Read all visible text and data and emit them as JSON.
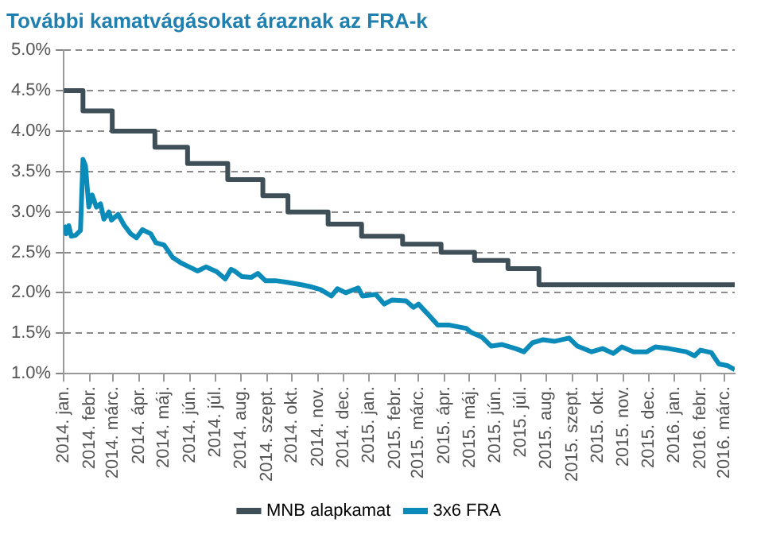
{
  "chart_data": {
    "type": "line",
    "title": "További kamatvágásokat áraznak az FRA-k",
    "xlim": [
      "2014-01-01",
      "2016-03-13"
    ],
    "xticks": [
      {
        "value": "2014-01-01",
        "label": "2014. jan."
      },
      {
        "value": "2014-02-01",
        "label": "2014. febr."
      },
      {
        "value": "2014-03-01",
        "label": "2014. márc."
      },
      {
        "value": "2014-04-01",
        "label": "2014. ápr."
      },
      {
        "value": "2014-05-01",
        "label": "2014. máj."
      },
      {
        "value": "2014-06-01",
        "label": "2014. jún."
      },
      {
        "value": "2014-07-01",
        "label": "2014. júl."
      },
      {
        "value": "2014-08-01",
        "label": "2014. aug."
      },
      {
        "value": "2014-09-01",
        "label": "2014. szept."
      },
      {
        "value": "2014-10-01",
        "label": "2014. okt."
      },
      {
        "value": "2014-11-01",
        "label": "2014. nov."
      },
      {
        "value": "2014-12-01",
        "label": "2014. dec."
      },
      {
        "value": "2015-01-01",
        "label": "2015. jan."
      },
      {
        "value": "2015-02-01",
        "label": "2015. febr."
      },
      {
        "value": "2015-03-01",
        "label": "2015. márc."
      },
      {
        "value": "2015-04-01",
        "label": "2015. ápr."
      },
      {
        "value": "2015-05-01",
        "label": "2015. máj."
      },
      {
        "value": "2015-06-01",
        "label": "2015. jún."
      },
      {
        "value": "2015-07-01",
        "label": "2015. júl."
      },
      {
        "value": "2015-08-01",
        "label": "2015. aug."
      },
      {
        "value": "2015-09-01",
        "label": "2015. szept."
      },
      {
        "value": "2015-10-01",
        "label": "2015. okt."
      },
      {
        "value": "2015-11-01",
        "label": "2015. nov."
      },
      {
        "value": "2015-12-01",
        "label": "2015. dec."
      },
      {
        "value": "2016-01-01",
        "label": "2016. jan."
      },
      {
        "value": "2016-02-01",
        "label": "2016. febr."
      },
      {
        "value": "2016-03-01",
        "label": "2016. márc."
      }
    ],
    "ylim": [
      1.0,
      5.0
    ],
    "yticks": [
      {
        "value": 1.0,
        "label": "1.0%"
      },
      {
        "value": 1.5,
        "label": "1.5%"
      },
      {
        "value": 2.0,
        "label": "2.0%"
      },
      {
        "value": 2.5,
        "label": "2.5%"
      },
      {
        "value": 3.0,
        "label": "3.0%"
      },
      {
        "value": 3.5,
        "label": "3.5%"
      },
      {
        "value": 4.0,
        "label": "4.0%"
      },
      {
        "value": 4.5,
        "label": "4.5%"
      },
      {
        "value": 5.0,
        "label": "5.0%"
      }
    ],
    "grid": "y",
    "legend": "bottom",
    "marker": "none",
    "series": [
      {
        "name": "MNB alapkamat",
        "type": "step",
        "color": "#3e4f58",
        "x": [
          "2014-01-01",
          "2014-01-24",
          "2014-02-28",
          "2014-04-20",
          "2014-05-29",
          "2014-07-16",
          "2014-08-27",
          "2014-09-26",
          "2014-11-13",
          "2014-12-23",
          "2015-02-10",
          "2015-03-28",
          "2015-05-07",
          "2015-06-16",
          "2015-07-23",
          "2016-03-13"
        ],
        "values": [
          4.5,
          4.25,
          4.0,
          3.8,
          3.6,
          3.4,
          3.2,
          3.0,
          2.85,
          2.7,
          2.6,
          2.5,
          2.4,
          2.3,
          2.1,
          2.1
        ]
      },
      {
        "name": "3x6 FRA",
        "type": "line",
        "color": "#0b8bb9",
        "x": [
          "2014-01-01",
          "2014-01-04",
          "2014-01-07",
          "2014-01-10",
          "2014-01-15",
          "2014-01-21",
          "2014-01-24",
          "2014-01-27",
          "2014-01-31",
          "2014-02-04",
          "2014-02-09",
          "2014-02-14",
          "2014-02-18",
          "2014-02-24",
          "2014-02-27",
          "2014-03-07",
          "2014-03-14",
          "2014-03-22",
          "2014-03-29",
          "2014-04-05",
          "2014-04-15",
          "2014-04-21",
          "2014-05-01",
          "2014-05-11",
          "2014-05-21",
          "2014-05-31",
          "2014-06-10",
          "2014-06-20",
          "2014-07-03",
          "2014-07-13",
          "2014-07-20",
          "2014-07-24",
          "2014-08-02",
          "2014-08-13",
          "2014-08-21",
          "2014-08-30",
          "2014-09-11",
          "2014-09-25",
          "2014-10-12",
          "2014-10-25",
          "2014-11-04",
          "2014-11-17",
          "2014-11-24",
          "2014-12-04",
          "2014-12-19",
          "2014-12-24",
          "2015-01-09",
          "2015-01-19",
          "2015-01-28",
          "2015-02-14",
          "2015-02-23",
          "2015-03-01",
          "2015-03-11",
          "2015-03-24",
          "2015-04-07",
          "2015-04-27",
          "2015-05-03",
          "2015-05-16",
          "2015-05-27",
          "2015-06-09",
          "2015-06-25",
          "2015-07-05",
          "2015-07-15",
          "2015-07-28",
          "2015-08-11",
          "2015-08-28",
          "2015-09-07",
          "2015-09-24",
          "2015-10-07",
          "2015-10-20",
          "2015-10-30",
          "2015-11-13",
          "2015-11-29",
          "2015-12-09",
          "2015-12-25",
          "2016-01-15",
          "2016-01-25",
          "2016-02-01",
          "2016-02-14",
          "2016-02-23",
          "2016-03-04",
          "2016-03-13"
        ],
        "values": [
          2.84,
          2.73,
          2.83,
          2.7,
          2.71,
          2.77,
          3.65,
          3.57,
          3.06,
          3.21,
          3.06,
          3.1,
          2.91,
          3.0,
          2.9,
          2.97,
          2.84,
          2.73,
          2.68,
          2.78,
          2.73,
          2.62,
          2.59,
          2.44,
          2.37,
          2.32,
          2.27,
          2.32,
          2.26,
          2.17,
          2.29,
          2.27,
          2.2,
          2.19,
          2.24,
          2.15,
          2.15,
          2.13,
          2.1,
          2.07,
          2.04,
          1.96,
          2.05,
          2.0,
          2.06,
          1.96,
          1.98,
          1.86,
          1.91,
          1.9,
          1.82,
          1.86,
          1.75,
          1.6,
          1.6,
          1.56,
          1.51,
          1.45,
          1.34,
          1.36,
          1.31,
          1.27,
          1.38,
          1.42,
          1.4,
          1.44,
          1.34,
          1.27,
          1.31,
          1.25,
          1.33,
          1.27,
          1.27,
          1.33,
          1.31,
          1.27,
          1.22,
          1.29,
          1.26,
          1.12,
          1.1,
          1.05
        ]
      }
    ]
  }
}
